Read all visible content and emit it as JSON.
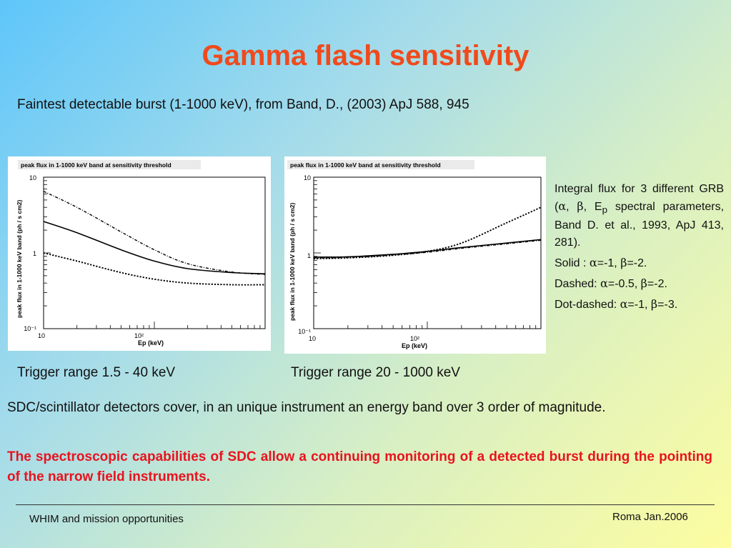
{
  "slide": {
    "title": "Gamma flash sensitivity",
    "subtitle": "Faintest detectable burst (1-1000 keV), from Band, D., (2003) ApJ 588, 945"
  },
  "chart_data": [
    {
      "type": "line",
      "title": "peak flux in 1-1000 keV band at sensitivity threshold",
      "xlabel": "Ep (keV)",
      "ylabel": "peak flux in 1-1000 keV band (ph / s cm2)",
      "x_scale": "log",
      "y_scale": "log",
      "xlim": [
        10,
        1000
      ],
      "ylim": [
        0.1,
        10
      ],
      "x_ticks": [
        "10",
        "10²"
      ],
      "y_ticks": [
        "10",
        "1",
        "10⁻¹"
      ],
      "x": [
        10,
        20,
        50,
        100,
        200,
        500,
        1000
      ],
      "series": [
        {
          "style": "solid",
          "values": [
            2.6,
            1.85,
            1.1,
            0.78,
            0.62,
            0.55,
            0.53
          ]
        },
        {
          "style": "dashed",
          "values": [
            1.0,
            0.78,
            0.55,
            0.45,
            0.4,
            0.38,
            0.38
          ]
        },
        {
          "style": "dot-dashed",
          "values": [
            6.5,
            4.0,
            1.9,
            1.1,
            0.72,
            0.56,
            0.52
          ]
        }
      ]
    },
    {
      "type": "line",
      "title": "peak flux in 1-1000 keV band at sensitivity threshold",
      "xlabel": "Ep (keV)",
      "ylabel": "peak flux in 1-1000 keV band (ph / s cm2)",
      "x_scale": "log",
      "y_scale": "log",
      "xlim": [
        10,
        1000
      ],
      "ylim": [
        0.1,
        10
      ],
      "x_ticks": [
        "10",
        "10²"
      ],
      "y_ticks": [
        "10",
        "1",
        "10⁻¹"
      ],
      "x": [
        10,
        20,
        50,
        100,
        200,
        500,
        1000
      ],
      "series": [
        {
          "style": "solid",
          "values": [
            0.88,
            0.89,
            0.96,
            1.05,
            1.18,
            1.35,
            1.5
          ]
        },
        {
          "style": "dashed",
          "values": [
            0.84,
            0.86,
            0.93,
            1.05,
            1.35,
            2.5,
            4.0
          ]
        },
        {
          "style": "dot-dashed",
          "values": [
            0.86,
            0.87,
            0.94,
            1.02,
            1.15,
            1.32,
            1.47
          ]
        }
      ]
    }
  ],
  "captions": {
    "left": "Trigger range 1.5 - 40 keV",
    "right": "Trigger range 20 - 1000 keV"
  },
  "side_notes": {
    "intro_a": "Integral flux for 3 different GRB (",
    "alpha": "α",
    "beta": "β",
    "sep": ", ",
    "ep_e": "E",
    "ep_sub": "p",
    "intro_b": " spectral parameters,  Band D. et al., 1993, ApJ 413, 281).",
    "solid_label": "Solid : ",
    "solid_a": "=-1, ",
    "solid_b": "=-2.",
    "dashed_label": "Dashed: ",
    "dashed_a": "=-0.5, ",
    "dashed_b": "=-2.",
    "dotdashed_label": "Dot-dashed: ",
    "dotdashed_a": "=-1, ",
    "dotdashed_b": "=-3."
  },
  "body": {
    "para1": "SDC/scintillator detectors cover, in an unique instrument an energy band over 3 order of magnitude.",
    "para2": "The spectroscopic capabilities of SDC allow a continuing monitoring of a detected burst during the pointing of the narrow field instruments."
  },
  "footer": {
    "left": "WHIM and mission opportunities",
    "right": "Roma  Jan.2006"
  }
}
